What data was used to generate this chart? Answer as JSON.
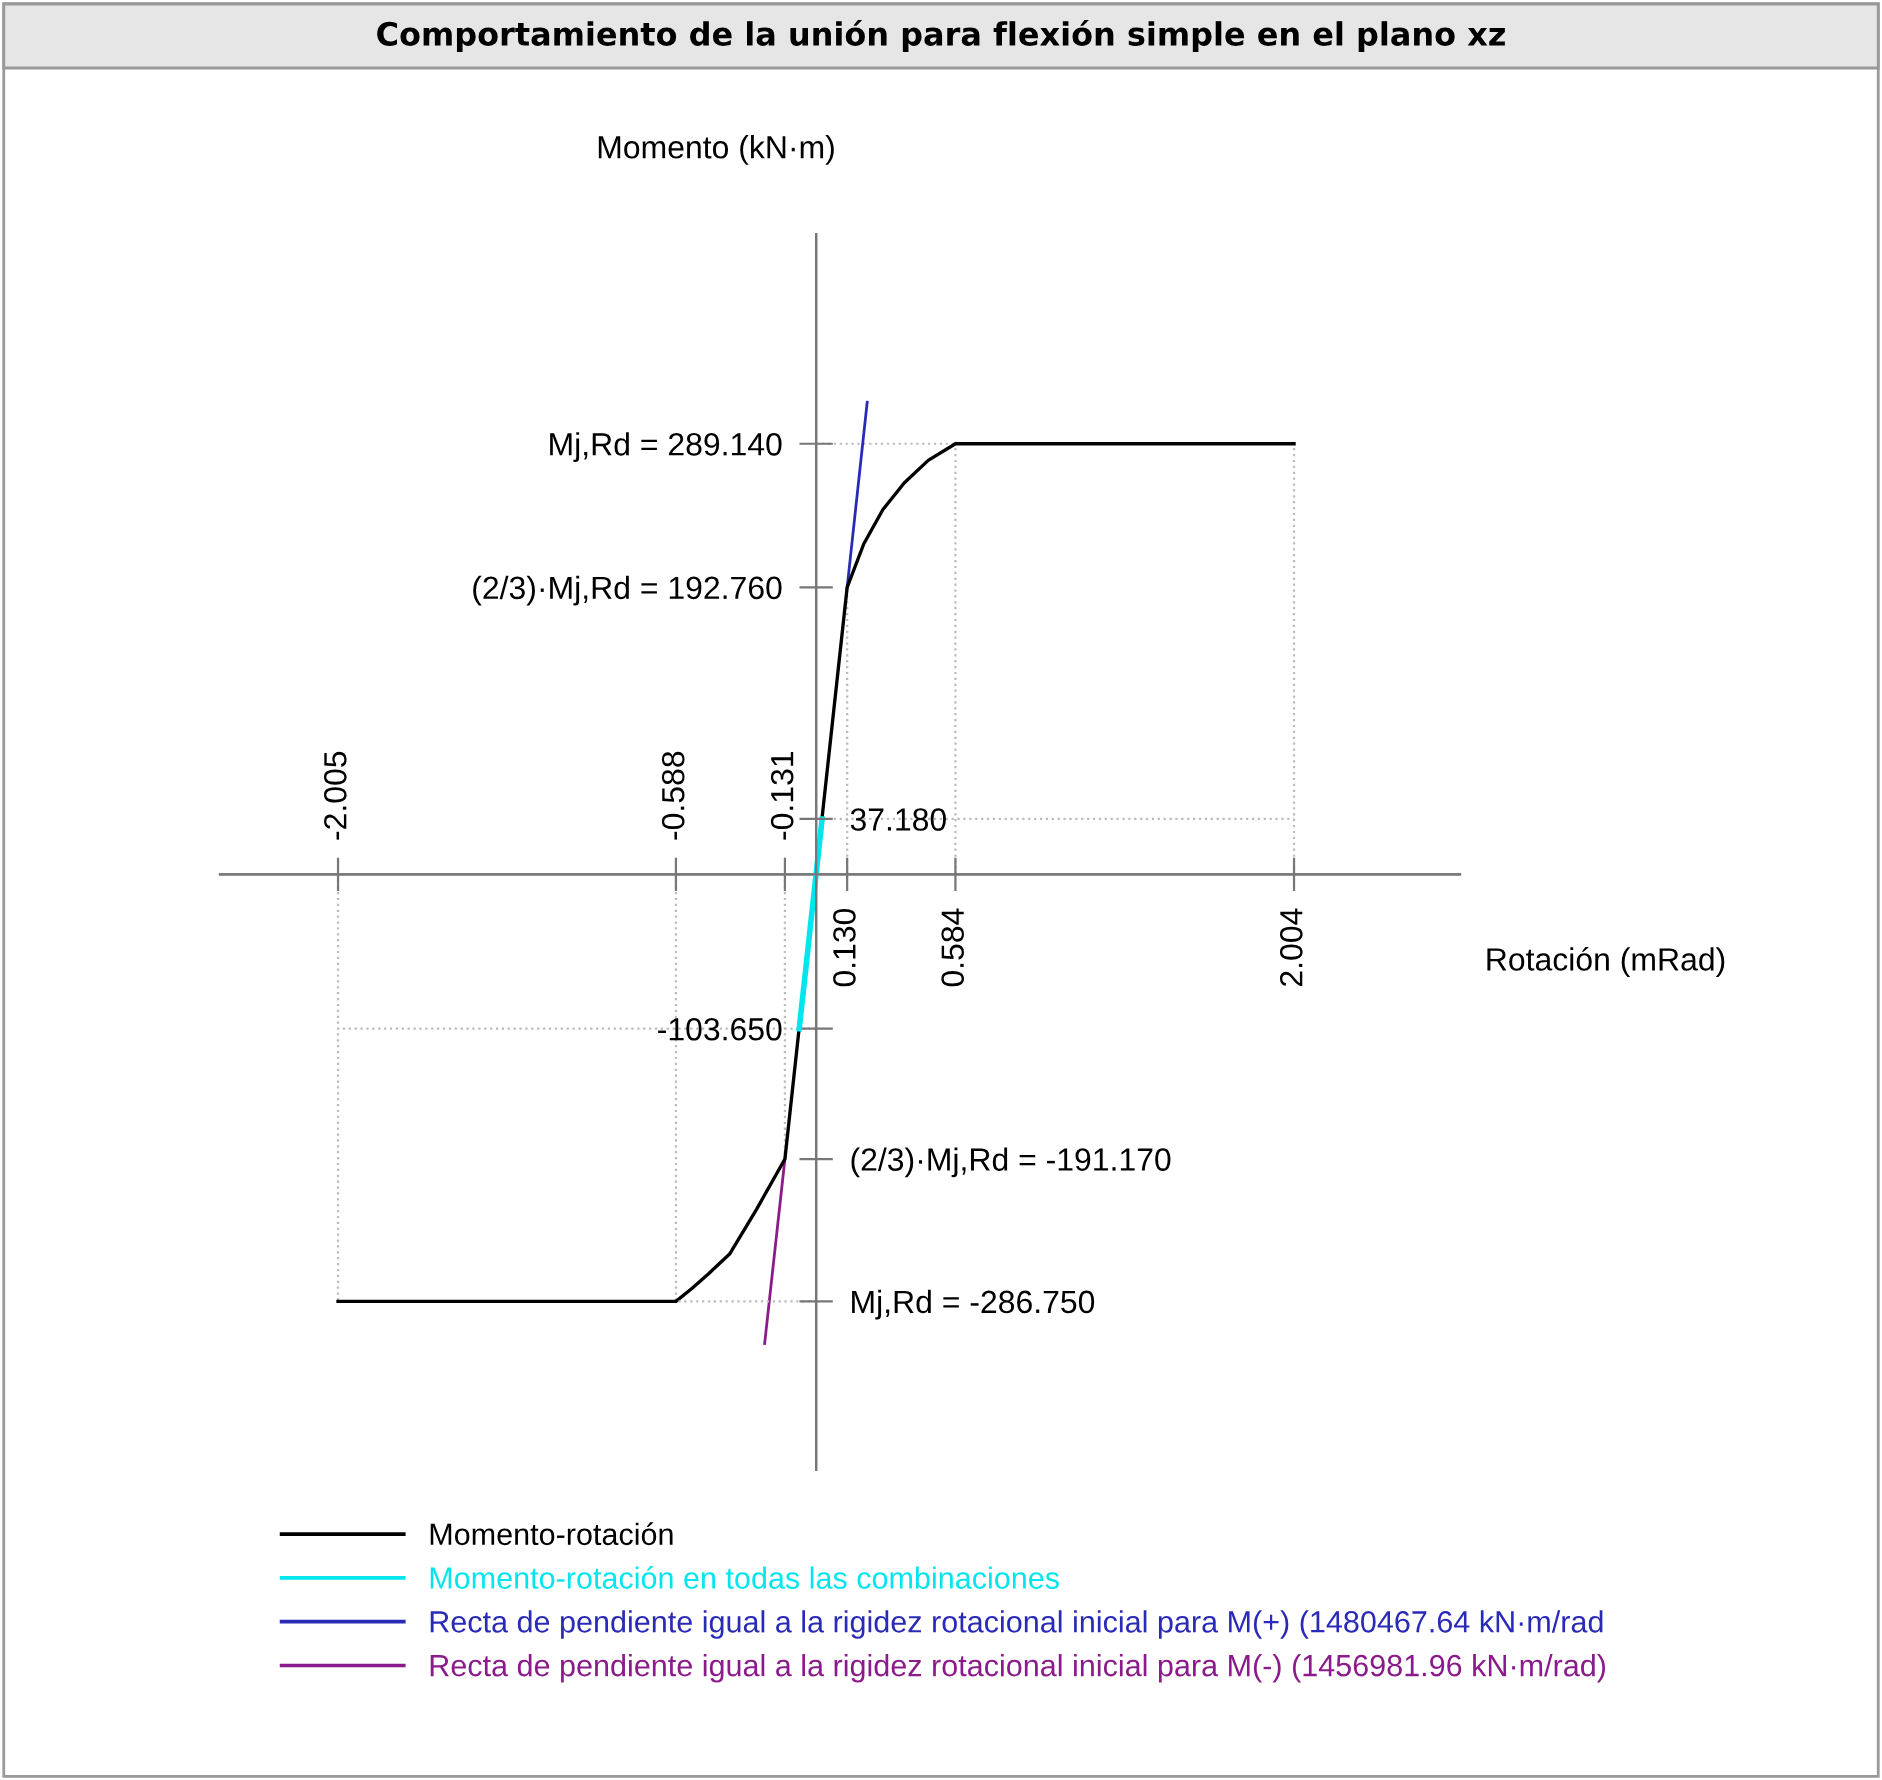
{
  "chart_data": {
    "type": "line",
    "title": "Comportamiento de la unión para flexión simple en el plano xz",
    "xlabel": "Rotación (mRad)",
    "ylabel": "Momento (kN·m)",
    "xlim": [
      -2.5,
      2.7
    ],
    "ylim": [
      -400,
      430
    ],
    "x2lim": [
      -2.5,
      2.7
    ],
    "y2lim": [
      -400,
      430
    ],
    "xticks": [
      {
        "value": 0.13,
        "label": "0.130"
      },
      {
        "value": 0.584,
        "label": "0.584"
      },
      {
        "value": 2.004,
        "label": "2.004"
      }
    ],
    "x2ticks": [
      {
        "value": -2.005,
        "label": "-2.005"
      },
      {
        "value": -0.588,
        "label": "-0.588"
      },
      {
        "value": -0.131,
        "label": "-0.131"
      }
    ],
    "yticks": [
      {
        "value": 289.14,
        "label": "Mj,Rd = 289.140"
      },
      {
        "value": 192.76,
        "label": "(2/3)·Mj,Rd = 192.760"
      },
      {
        "value": -103.65,
        "label": "-103.650"
      }
    ],
    "y2ticks": [
      {
        "value": 37.18,
        "label": "37.180"
      },
      {
        "value": -191.17,
        "label": "(2/3)·Mj,Rd = -191.170"
      },
      {
        "value": -286.75,
        "label": "Mj,Rd = -286.750"
      }
    ],
    "ref_lines": [
      {
        "axis": "x",
        "value": -2.005,
        "color": "#bbbbbb",
        "line_style": "dotted"
      },
      {
        "axis": "x",
        "value": -0.588,
        "color": "#bbbbbb",
        "line_style": "dotted"
      },
      {
        "axis": "x",
        "value": -0.131,
        "color": "#bbbbbb",
        "line_style": "dotted"
      },
      {
        "axis": "x",
        "value": 0.13,
        "color": "#bbbbbb",
        "line_style": "dotted"
      },
      {
        "axis": "x",
        "value": 0.584,
        "color": "#bbbbbb",
        "line_style": "dotted"
      },
      {
        "axis": "x",
        "value": 2.004,
        "color": "#bbbbbb",
        "line_style": "dotted"
      },
      {
        "axis": "y",
        "value": 289.14,
        "color": "#bbbbbb",
        "line_style": "dotted"
      },
      {
        "axis": "y",
        "value": -103.65,
        "color": "#bbbbbb",
        "line_style": "dotted"
      },
      {
        "axis": "y2",
        "value": 37.18,
        "color": "#bbbbbb",
        "line_style": "dotted"
      },
      {
        "axis": "y2",
        "value": -286.75,
        "color": "#bbbbbb",
        "line_style": "dotted"
      }
    ],
    "legend": "bottom",
    "marker": "none",
    "line_style": "solid",
    "series": [
      {
        "name": "Recta de pendiente igual a la rigidez rotacional inicial para M(+) (1480467.64 kN·m/rad",
        "color": "#2a2ab8",
        "x": [
          0.13,
          0.214
        ],
        "values": [
          192.76,
          317
        ]
      },
      {
        "name": "Recta de pendiente igual a la rigidez rotacional inicial para M(-) (1456981.96 kN·m/rad)",
        "color": "#8b1a8b",
        "x": [
          -0.131,
          -0.216
        ],
        "values": [
          -191.17,
          -315
        ]
      },
      {
        "name": "Momento-rotación",
        "color": "#000000",
        "x": [
          -2.005,
          -0.588,
          -0.52,
          -0.45,
          -0.363,
          -0.25,
          -0.131,
          0.13,
          0.2,
          0.28,
          0.37,
          0.47,
          0.584,
          2.004
        ],
        "values": [
          -286.75,
          -286.75,
          -278,
          -268,
          -255,
          -225,
          -191.17,
          192.76,
          222,
          245,
          263,
          278,
          289.14,
          289.14
        ]
      },
      {
        "name": "Momento-rotación en todas las combinaciones",
        "color": "#00e5ee",
        "x": [
          -0.071,
          0.025
        ],
        "values": [
          -103.65,
          37.18
        ]
      }
    ]
  }
}
